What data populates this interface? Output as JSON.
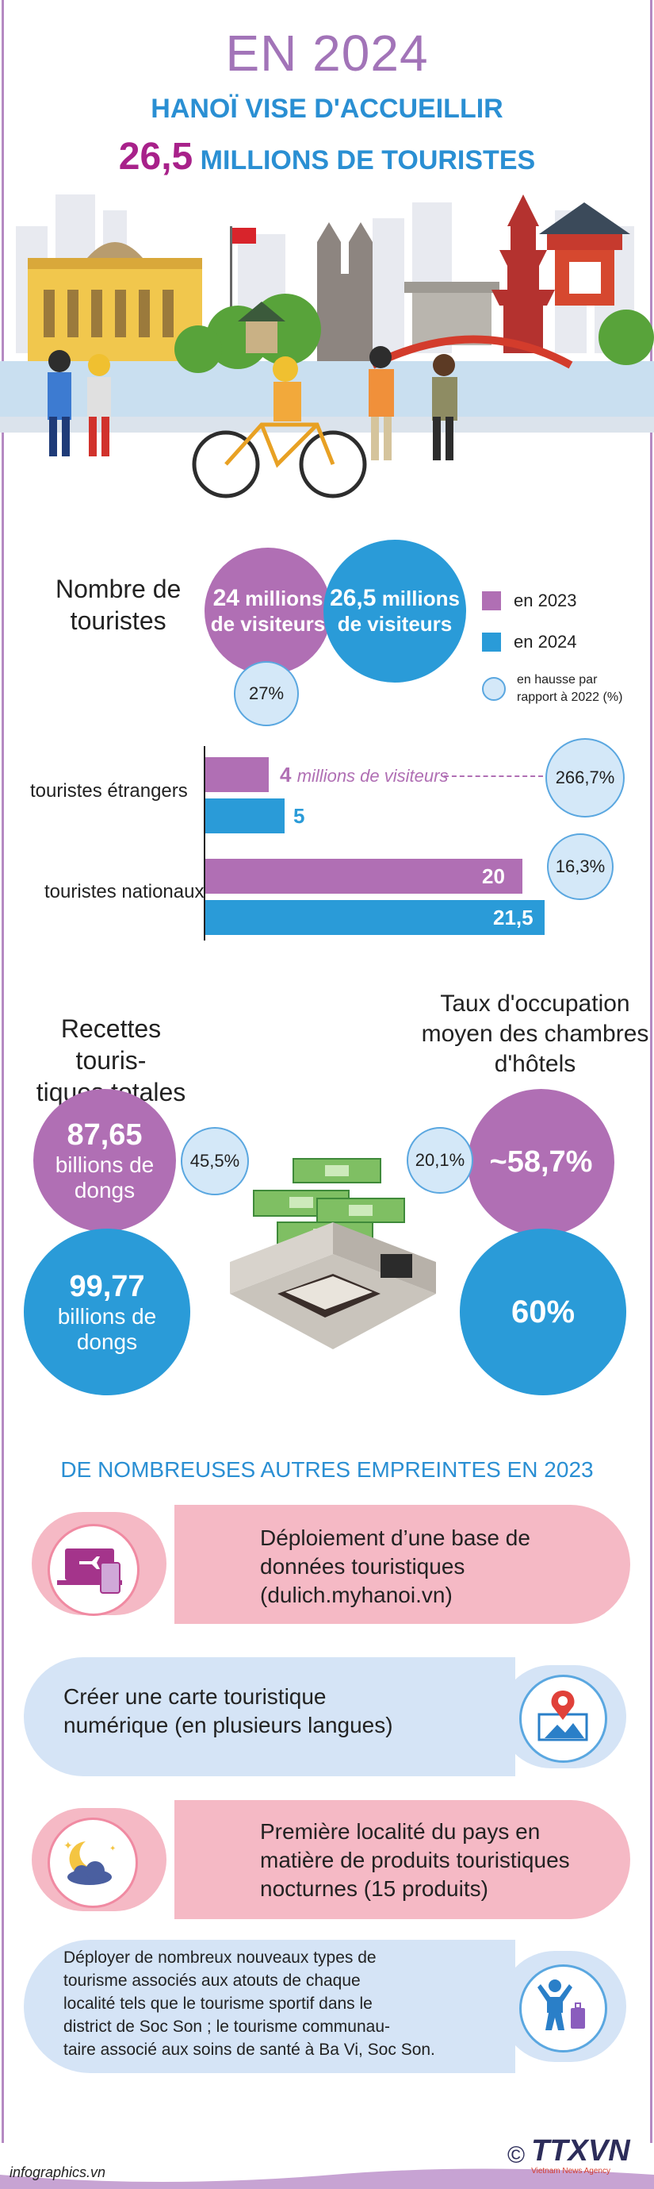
{
  "header": {
    "title": "EN 2024",
    "subtitle1": "HANOÏ VISE D'ACCUEILLIR",
    "subtitle2_number": "26,5",
    "subtitle2_rest": "MILLIONS DE TOURISTES"
  },
  "visitors": {
    "label": "Nombre de touristes",
    "label_line1": "Nombre de",
    "label_line2": "touristes",
    "c2023_num": "24",
    "c2023_rest": "millions",
    "c2023_line2": "de visiteurs",
    "c2024_num": "26,5",
    "c2024_rest": "millions",
    "c2024_line2": "de visiteurs",
    "growth": "27%"
  },
  "legend": {
    "y2023": "en 2023",
    "y2024": "en 2024",
    "growth_line1": "en hausse par",
    "growth_line2": "rapport à 2022 (%)",
    "color_2023": "#b06fb4",
    "color_2024": "#2a9bd8"
  },
  "bars": {
    "foreign_label": "touristes étrangers",
    "foreign_2023": "4",
    "foreign_2023_unit": "millions de visiteurs",
    "foreign_2024": "5",
    "foreign_growth": "266,7%",
    "domestic_label": "touristes nationaux",
    "domestic_2023": "20",
    "domestic_2024": "21,5",
    "domestic_growth": "16,3%"
  },
  "revenue": {
    "title_line1": "Recettes touris-",
    "title_line2": "tiques totales",
    "v2023": "87,65",
    "v2023_unit1": "billions de",
    "v2023_unit2": "dongs",
    "v2024": "99,77",
    "v2024_unit1": "billions de",
    "v2024_unit2": "dongs",
    "growth": "45,5%"
  },
  "occupancy": {
    "title_line1": "Taux d'occupation",
    "title_line2": "moyen des chambres",
    "title_line3": "d'hôtels",
    "v2023": "~58,7%",
    "v2024": "60%",
    "growth": "20,1%"
  },
  "footprints": {
    "heading": "DE NOMBREUSES AUTRES EMPREINTES EN 2023",
    "items": [
      {
        "line1": "Déploiement d’une base de",
        "line2": "données touristiques",
        "line3": "(dulich.myhanoi.vn)",
        "icon": "devices-icon"
      },
      {
        "line1": "Créer une carte touristique",
        "line2": "numérique (en plusieurs langues)",
        "icon": "map-pin-icon"
      },
      {
        "line1": "Première localité du pays en",
        "line2": "matière de produits touristiques",
        "line3": "nocturnes (15 produits)",
        "icon": "night-icon"
      },
      {
        "line1": "Déployer de nombreux nouveaux types de",
        "line2": "tourisme associés aux atouts de chaque",
        "line3": "localité tels que le tourisme sportif dans le",
        "line4": "district de Soc Son ; le tourisme communau-",
        "line5": "taire associé aux soins de santé à Ba Vi, Soc Son.",
        "icon": "traveler-icon"
      }
    ]
  },
  "footer": {
    "site": "infographics.vn",
    "brand": "TTXVN",
    "agency": "Vietnam News Agency",
    "copyright": "©"
  }
}
